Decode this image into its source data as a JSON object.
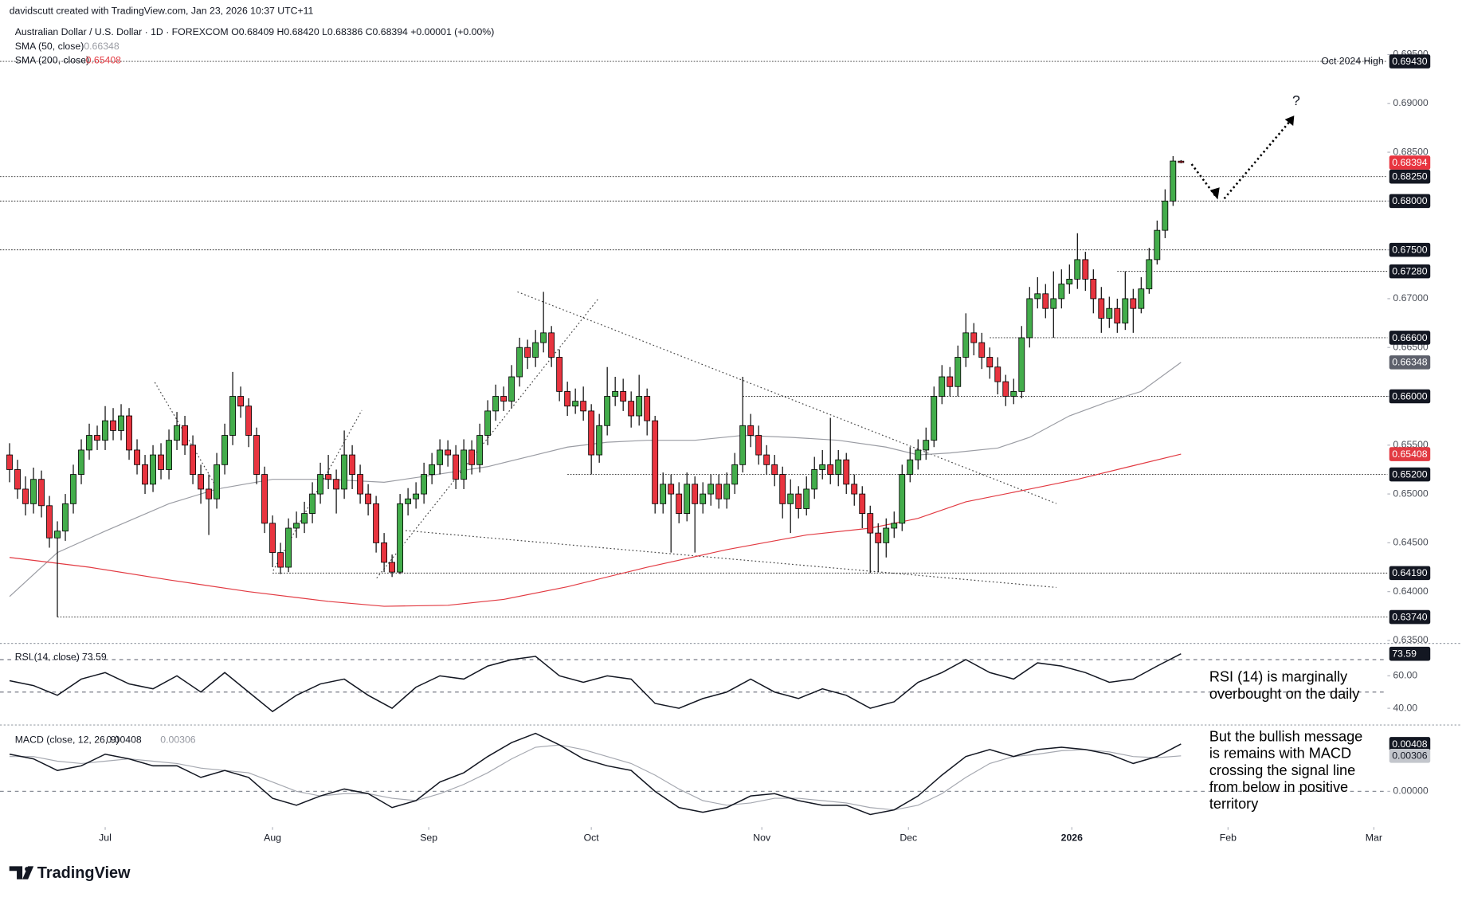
{
  "header": {
    "credit": "davidscutt created with TradingView.com, Jan 23, 2026 10:37 UTC+11",
    "symbol": "Australian Dollar / U.S. Dollar · 1D · FOREXCOM",
    "ohlc": "O0.68409 H0.68420 L0.68386 C0.68394 +0.00001 (+0.00%)",
    "logo": "TradingView"
  },
  "chart_data": [
    {
      "type": "candlestick",
      "open": [
        0.654,
        0.6525,
        0.6505,
        0.649,
        0.6515,
        0.6488,
        0.6455,
        0.6462,
        0.649,
        0.652,
        0.6545,
        0.656,
        0.6555,
        0.6575,
        0.6565,
        0.658,
        0.6545,
        0.653,
        0.651,
        0.654,
        0.6525,
        0.6555,
        0.657,
        0.655,
        0.652,
        0.6505,
        0.6495,
        0.653,
        0.656,
        0.66,
        0.659,
        0.656,
        0.652,
        0.647,
        0.644,
        0.6425,
        0.6465,
        0.647,
        0.648,
        0.65,
        0.652,
        0.6515,
        0.6505,
        0.654,
        0.652,
        0.65,
        0.649,
        0.645,
        0.643,
        0.642,
        0.649,
        0.6495,
        0.65,
        0.652,
        0.653,
        0.6545,
        0.654,
        0.6515,
        0.6545,
        0.653,
        0.656,
        0.6585,
        0.66,
        0.6595,
        0.662,
        0.665,
        0.664,
        0.6655,
        0.6665,
        0.664,
        0.6605,
        0.659,
        0.6595,
        0.6585,
        0.654,
        0.657,
        0.66,
        0.6605,
        0.6595,
        0.658,
        0.66,
        0.6575,
        0.649,
        0.651,
        0.65,
        0.648,
        0.651,
        0.649,
        0.65,
        0.651,
        0.6495,
        0.651,
        0.653,
        0.657,
        0.656,
        0.654,
        0.653,
        0.652,
        0.649,
        0.65,
        0.6485,
        0.6505,
        0.6525,
        0.653,
        0.652,
        0.6535,
        0.651,
        0.65,
        0.648,
        0.646,
        0.645,
        0.6465,
        0.647,
        0.652,
        0.6535,
        0.6545,
        0.6555,
        0.66,
        0.662,
        0.661,
        0.664,
        0.6665,
        0.6655,
        0.664,
        0.663,
        0.6615,
        0.66,
        0.6605,
        0.666,
        0.67,
        0.6705,
        0.669,
        0.67,
        0.6715,
        0.672,
        0.674,
        0.672,
        0.67,
        0.668,
        0.669,
        0.6675,
        0.67,
        0.669,
        0.671,
        0.674,
        0.677,
        0.68,
        0.68409
      ],
      "high": [
        0.6552,
        0.6535,
        0.6518,
        0.6527,
        0.6524,
        0.6498,
        0.6472,
        0.65,
        0.653,
        0.6556,
        0.6572,
        0.657,
        0.659,
        0.6588,
        0.6592,
        0.6588,
        0.6556,
        0.654,
        0.655,
        0.6552,
        0.6566,
        0.6584,
        0.658,
        0.656,
        0.653,
        0.652,
        0.6542,
        0.6572,
        0.6625,
        0.661,
        0.6598,
        0.6568,
        0.6528,
        0.6478,
        0.645,
        0.6475,
        0.6482,
        0.6492,
        0.6512,
        0.6532,
        0.654,
        0.6525,
        0.6565,
        0.655,
        0.653,
        0.651,
        0.6498,
        0.646,
        0.6438,
        0.65,
        0.6506,
        0.6512,
        0.6532,
        0.6542,
        0.6556,
        0.6555,
        0.655,
        0.6556,
        0.6555,
        0.6572,
        0.6596,
        0.6612,
        0.661,
        0.6632,
        0.666,
        0.6658,
        0.6668,
        0.6707,
        0.6672,
        0.6648,
        0.6615,
        0.6608,
        0.661,
        0.6592,
        0.6582,
        0.663,
        0.662,
        0.6618,
        0.6605,
        0.6622,
        0.6608,
        0.658,
        0.6522,
        0.652,
        0.6512,
        0.6522,
        0.6518,
        0.6512,
        0.652,
        0.652,
        0.6522,
        0.6542,
        0.662,
        0.6582,
        0.657,
        0.655,
        0.654,
        0.6528,
        0.6515,
        0.6508,
        0.6518,
        0.6538,
        0.6545,
        0.6578,
        0.6545,
        0.6542,
        0.652,
        0.6508,
        0.6488,
        0.647,
        0.6475,
        0.6482,
        0.653,
        0.6548,
        0.6556,
        0.6568,
        0.661,
        0.6632,
        0.663,
        0.6652,
        0.6685,
        0.6675,
        0.6665,
        0.665,
        0.664,
        0.6622,
        0.6618,
        0.6672,
        0.6712,
        0.6722,
        0.6715,
        0.6728,
        0.673,
        0.6735,
        0.6767,
        0.6748,
        0.673,
        0.6712,
        0.6702,
        0.67,
        0.6728,
        0.671,
        0.6722,
        0.6752,
        0.678,
        0.6812,
        0.6846,
        0.6842
      ],
      "low": [
        0.6512,
        0.6495,
        0.6478,
        0.648,
        0.6476,
        0.6445,
        0.6374,
        0.6452,
        0.648,
        0.651,
        0.6535,
        0.6545,
        0.6545,
        0.6555,
        0.6555,
        0.6535,
        0.652,
        0.65,
        0.6502,
        0.6515,
        0.6515,
        0.6545,
        0.654,
        0.651,
        0.649,
        0.6458,
        0.6485,
        0.652,
        0.655,
        0.6578,
        0.6548,
        0.651,
        0.646,
        0.6425,
        0.6418,
        0.642,
        0.6455,
        0.646,
        0.647,
        0.649,
        0.6505,
        0.648,
        0.6495,
        0.6505,
        0.649,
        0.6478,
        0.644,
        0.642,
        0.6415,
        0.6418,
        0.6478,
        0.6485,
        0.649,
        0.651,
        0.652,
        0.6528,
        0.6505,
        0.6505,
        0.652,
        0.6522,
        0.655,
        0.6575,
        0.6585,
        0.6588,
        0.661,
        0.6628,
        0.663,
        0.6645,
        0.663,
        0.6595,
        0.658,
        0.6582,
        0.6575,
        0.652,
        0.6532,
        0.656,
        0.659,
        0.6585,
        0.6568,
        0.657,
        0.656,
        0.648,
        0.648,
        0.644,
        0.647,
        0.6472,
        0.644,
        0.648,
        0.6488,
        0.6485,
        0.6485,
        0.65,
        0.6522,
        0.6548,
        0.653,
        0.652,
        0.6508,
        0.6475,
        0.646,
        0.6475,
        0.6478,
        0.6495,
        0.6515,
        0.651,
        0.6508,
        0.65,
        0.6488,
        0.6465,
        0.6419,
        0.642,
        0.6435,
        0.6455,
        0.6462,
        0.6512,
        0.6525,
        0.6535,
        0.6548,
        0.6592,
        0.66,
        0.66,
        0.663,
        0.6642,
        0.6628,
        0.6618,
        0.6602,
        0.659,
        0.6592,
        0.6598,
        0.665,
        0.669,
        0.668,
        0.666,
        0.669,
        0.6705,
        0.671,
        0.6708,
        0.6685,
        0.6665,
        0.667,
        0.6665,
        0.6668,
        0.6665,
        0.6685,
        0.6705,
        0.6735,
        0.6762,
        0.6795,
        0.68386
      ],
      "close": [
        0.6525,
        0.6505,
        0.649,
        0.6515,
        0.6488,
        0.6455,
        0.6462,
        0.649,
        0.652,
        0.6545,
        0.656,
        0.6555,
        0.6575,
        0.6565,
        0.658,
        0.6545,
        0.653,
        0.651,
        0.654,
        0.6525,
        0.6555,
        0.657,
        0.655,
        0.652,
        0.6505,
        0.6495,
        0.653,
        0.656,
        0.66,
        0.659,
        0.656,
        0.652,
        0.647,
        0.644,
        0.6425,
        0.6465,
        0.647,
        0.648,
        0.65,
        0.652,
        0.6515,
        0.6505,
        0.654,
        0.652,
        0.65,
        0.649,
        0.645,
        0.643,
        0.642,
        0.649,
        0.6495,
        0.65,
        0.652,
        0.653,
        0.6545,
        0.654,
        0.6515,
        0.6545,
        0.653,
        0.656,
        0.6585,
        0.66,
        0.6595,
        0.662,
        0.665,
        0.664,
        0.6655,
        0.6665,
        0.664,
        0.6605,
        0.659,
        0.6595,
        0.6585,
        0.654,
        0.657,
        0.66,
        0.6605,
        0.6595,
        0.658,
        0.66,
        0.6575,
        0.649,
        0.651,
        0.65,
        0.648,
        0.651,
        0.649,
        0.65,
        0.651,
        0.6495,
        0.651,
        0.653,
        0.657,
        0.656,
        0.654,
        0.653,
        0.652,
        0.649,
        0.65,
        0.6485,
        0.6505,
        0.6525,
        0.653,
        0.652,
        0.6535,
        0.651,
        0.65,
        0.648,
        0.646,
        0.645,
        0.6465,
        0.647,
        0.652,
        0.6535,
        0.6545,
        0.6555,
        0.66,
        0.662,
        0.661,
        0.664,
        0.6665,
        0.6655,
        0.664,
        0.663,
        0.6615,
        0.66,
        0.6605,
        0.666,
        0.67,
        0.6705,
        0.669,
        0.67,
        0.6715,
        0.672,
        0.674,
        0.672,
        0.67,
        0.668,
        0.669,
        0.6675,
        0.67,
        0.669,
        0.671,
        0.674,
        0.677,
        0.68,
        0.6841,
        0.68394
      ],
      "colors": {
        "up": "#43ad4b",
        "down": "#e8343f"
      },
      "xlim": [
        -1.2,
        172.9
      ],
      "xticks": [
        {
          "value": 12,
          "label": "Jul"
        },
        {
          "value": 33,
          "label": "Aug"
        },
        {
          "value": 52.6,
          "label": "Sep"
        },
        {
          "value": 73,
          "label": "Oct"
        },
        {
          "value": 94.4,
          "label": "Nov"
        },
        {
          "value": 112.8,
          "label": "Dec"
        },
        {
          "value": 133.3,
          "label": "2026"
        },
        {
          "value": 152.9,
          "label": "Feb"
        },
        {
          "value": 171.2,
          "label": "Mar"
        }
      ],
      "ylim": [
        0.6347,
        0.6982
      ],
      "yticks": [
        {
          "value": 0.635,
          "label": "0.63500"
        },
        {
          "value": 0.64,
          "label": "0.64000"
        },
        {
          "value": 0.645,
          "label": "0.64500"
        },
        {
          "value": 0.65,
          "label": "0.65000"
        },
        {
          "value": 0.655,
          "label": "0.65500"
        },
        {
          "value": 0.66,
          "label": "0.66000"
        },
        {
          "value": 0.665,
          "label": "0.66500"
        },
        {
          "value": 0.67,
          "label": "0.67000"
        },
        {
          "value": 0.675,
          "label": "0.67500"
        },
        {
          "value": 0.68,
          "label": "0.68000"
        },
        {
          "value": 0.685,
          "label": "0.68500"
        },
        {
          "value": 0.69,
          "label": "0.69000"
        },
        {
          "value": 0.695,
          "label": "0.69500"
        }
      ],
      "overlays": [
        {
          "name": "SMA (50, close)",
          "color": "#9a9ca3",
          "x": [
            0,
            6,
            12,
            20,
            26,
            33,
            40,
            47,
            52,
            60,
            66,
            70,
            75,
            80,
            86,
            92,
            98,
            104,
            110,
            114,
            118,
            124,
            128,
            133,
            138,
            142,
            147
          ],
          "values": [
            0.6395,
            0.644,
            0.6462,
            0.649,
            0.6505,
            0.6515,
            0.6515,
            0.6512,
            0.6518,
            0.6528,
            0.654,
            0.6548,
            0.6553,
            0.6555,
            0.6555,
            0.656,
            0.6558,
            0.6555,
            0.6548,
            0.654,
            0.6542,
            0.6547,
            0.6558,
            0.658,
            0.6595,
            0.6605,
            0.66348
          ]
        },
        {
          "name": "SMA (200, close)",
          "color": "#e23a42",
          "x": [
            0,
            10,
            20,
            30,
            40,
            47,
            55,
            62,
            70,
            80,
            90,
            100,
            108,
            114,
            120,
            128,
            134,
            140,
            147
          ],
          "values": [
            0.6435,
            0.6425,
            0.6412,
            0.64,
            0.639,
            0.6385,
            0.6386,
            0.6392,
            0.6405,
            0.6425,
            0.6443,
            0.6458,
            0.6465,
            0.6475,
            0.6492,
            0.6505,
            0.6515,
            0.6527,
            0.65408
          ]
        }
      ],
      "levels": [
        {
          "value": 0.6943,
          "label": "0.69430",
          "note": "Oct 2024 High"
        },
        {
          "value": 0.6825,
          "label": "0.68250"
        },
        {
          "value": 0.68,
          "label": "0.68000"
        },
        {
          "value": 0.675,
          "label": "0.67500"
        },
        {
          "value": 0.6728,
          "label": "0.67280",
          "start": 139
        },
        {
          "value": 0.666,
          "label": "0.66600",
          "start": 123
        },
        {
          "value": 0.66,
          "label": "0.66000",
          "start": 92
        },
        {
          "value": 0.652,
          "label": "0.65200",
          "start": 70
        },
        {
          "value": 0.6419,
          "label": "0.64190",
          "start": 33
        },
        {
          "value": 0.6374,
          "label": "0.63740",
          "start": 6
        }
      ],
      "annotations": [
        "?"
      ]
    },
    {
      "type": "line",
      "x": [
        0,
        3,
        6,
        9,
        12,
        15,
        18,
        21,
        24,
        27,
        30,
        33,
        36,
        39,
        42,
        45,
        48,
        51,
        54,
        57,
        60,
        63,
        66,
        69,
        72,
        75,
        78,
        81,
        84,
        87,
        90,
        93,
        96,
        99,
        102,
        105,
        108,
        111,
        114,
        117,
        120,
        123,
        126,
        129,
        132,
        135,
        138,
        141,
        144,
        147
      ],
      "series": [
        {
          "name": "RSI (14, close)",
          "color": "#131722",
          "values": [
            57,
            54,
            48,
            58,
            62,
            55,
            52,
            60,
            50,
            62,
            50,
            38,
            48,
            55,
            58,
            48,
            40,
            53,
            60,
            58,
            66,
            70,
            72,
            60,
            56,
            60,
            58,
            43,
            40,
            46,
            50,
            58,
            50,
            46,
            52,
            48,
            40,
            44,
            56,
            62,
            70,
            62,
            58,
            68,
            66,
            62,
            56,
            58,
            66,
            73.59
          ]
        }
      ],
      "ylim": [
        30,
        80
      ],
      "yticks": [
        {
          "value": 40,
          "label": "40.00"
        },
        {
          "value": 60,
          "label": "60.00"
        }
      ],
      "levels": [
        70,
        50
      ],
      "annotation": [
        "RSI (14) is marginally",
        "overbought on the daily"
      ]
    },
    {
      "type": "line",
      "x": [
        0,
        3,
        6,
        9,
        12,
        15,
        18,
        21,
        24,
        27,
        30,
        33,
        36,
        39,
        42,
        45,
        48,
        51,
        54,
        57,
        60,
        63,
        66,
        69,
        72,
        75,
        78,
        81,
        84,
        87,
        90,
        93,
        96,
        99,
        102,
        105,
        108,
        111,
        114,
        117,
        120,
        123,
        126,
        129,
        132,
        135,
        138,
        141,
        144,
        147
      ],
      "series": [
        {
          "name": "MACD (close, 12, 26, 9)",
          "color": "#131722",
          "values": [
            0.0032,
            0.0028,
            0.0018,
            0.0022,
            0.0032,
            0.0028,
            0.0022,
            0.0022,
            0.0012,
            0.0018,
            0.0012,
            -0.0006,
            -0.0012,
            -0.0004,
            0.0002,
            -0.0002,
            -0.0014,
            -0.0008,
            0.0008,
            0.0016,
            0.003,
            0.0042,
            0.005,
            0.004,
            0.0028,
            0.0022,
            0.0018,
            0,
            -0.0014,
            -0.0018,
            -0.0014,
            -0.0004,
            -0.0002,
            -0.0008,
            -0.0012,
            -0.0012,
            -0.002,
            -0.0016,
            -0.0004,
            0.0014,
            0.003,
            0.0036,
            0.003,
            0.0036,
            0.0038,
            0.0036,
            0.0032,
            0.0024,
            0.003,
            0.00408
          ]
        },
        {
          "color": "#a5a8b0",
          "values": [
            0.003,
            0.003,
            0.0026,
            0.0024,
            0.0026,
            0.0028,
            0.0026,
            0.0024,
            0.002,
            0.0018,
            0.0016,
            0.0008,
            0,
            -0.0004,
            -0.0002,
            -0.0002,
            -0.0006,
            -0.0008,
            -0.0002,
            0.0006,
            0.0016,
            0.0028,
            0.0038,
            0.004,
            0.0036,
            0.003,
            0.0024,
            0.0014,
            0.0002,
            -0.0008,
            -0.0012,
            -0.001,
            -0.0006,
            -0.0006,
            -0.0008,
            -0.001,
            -0.0014,
            -0.0016,
            -0.0012,
            -0.0002,
            0.0012,
            0.0024,
            0.003,
            0.0032,
            0.0035,
            0.0036,
            0.0034,
            0.003,
            0.0029,
            0.00306
          ]
        }
      ],
      "ylim": [
        -0.003,
        0.0056
      ],
      "yticks": [
        {
          "value": 0,
          "label": "0.00000"
        }
      ],
      "grid": "dashed",
      "annotation": [
        "But the bullish message",
        "is remains with MACD",
        "crossing the signal line",
        "from below in positive",
        "territory"
      ]
    }
  ]
}
